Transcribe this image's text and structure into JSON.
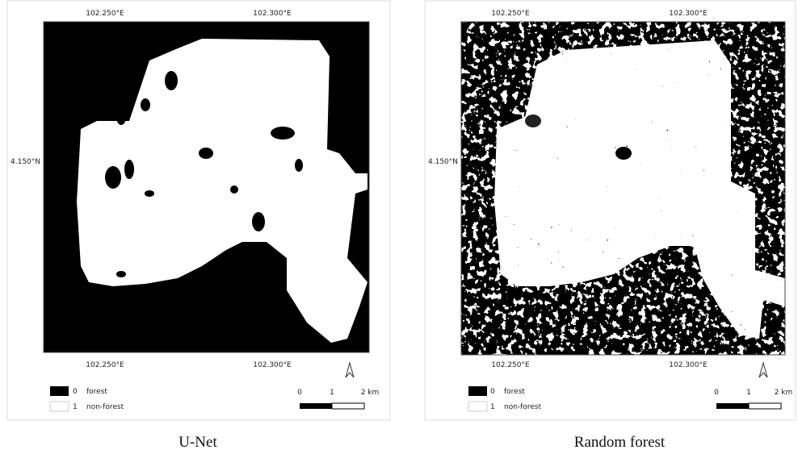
{
  "panels": [
    {
      "top_labels": [
        "102.250°E",
        "102.300°E"
      ],
      "bottom_labels": [
        "102.250°E",
        "102.300°E"
      ],
      "left_label": "4.150°N",
      "legend": [
        {
          "value": "0",
          "label": "forest"
        },
        {
          "value": "1",
          "label": "non-forest"
        }
      ],
      "scale": [
        "0",
        "1",
        "2 km"
      ],
      "caption": "U-Net"
    },
    {
      "top_labels": [
        "102.250°E",
        "102.300°E"
      ],
      "bottom_labels": [
        "102.250°E",
        "102.300°E"
      ],
      "left_label": "4.150°N",
      "legend": [
        {
          "value": "0",
          "label": "forest"
        },
        {
          "value": "1",
          "label": "non-forest"
        }
      ],
      "scale": [
        "0",
        "1",
        "2 km"
      ],
      "caption": "Random forest"
    }
  ]
}
